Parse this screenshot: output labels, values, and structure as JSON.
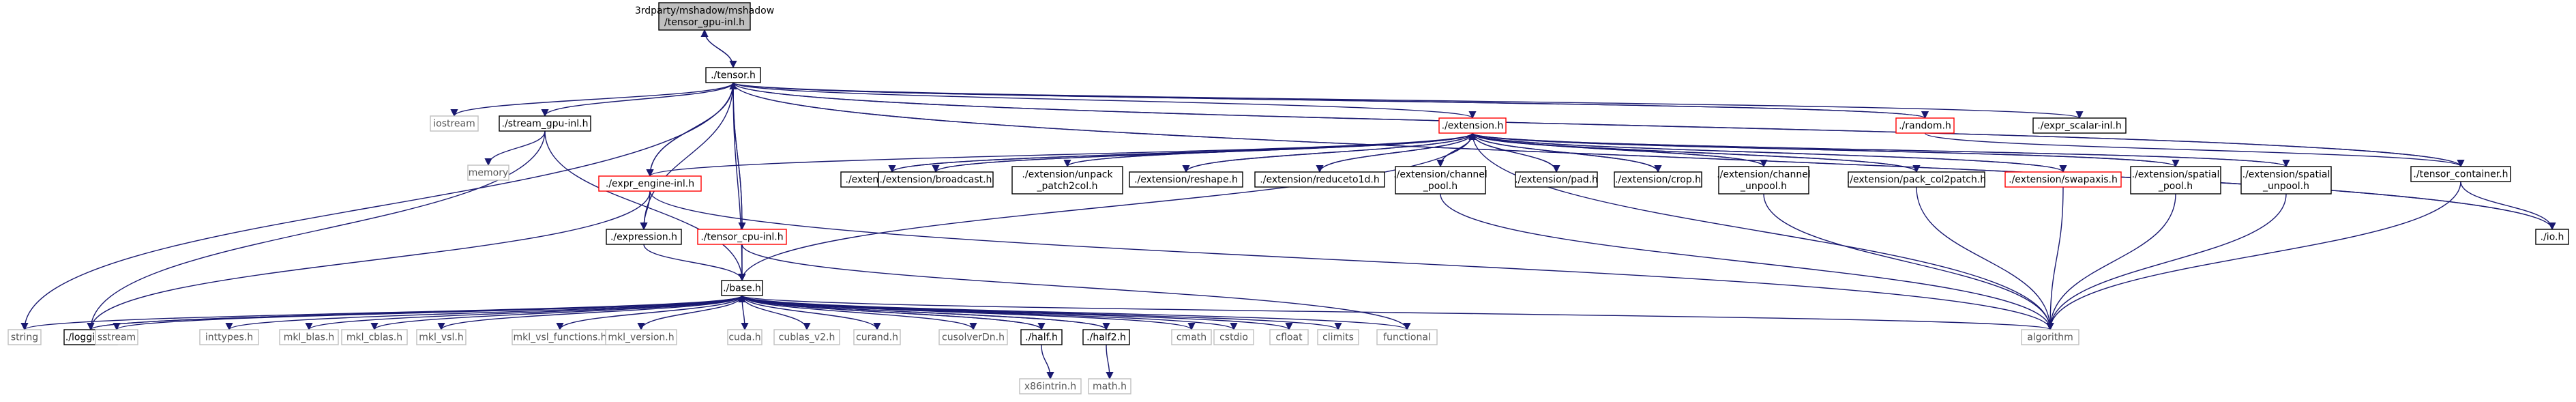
{
  "graph": {
    "nodes": [
      {
        "id": "root",
        "lines": [
          "3rdparty/mshadow/mshadow",
          "/tensor_gpu-inl.h"
        ],
        "kind": "root"
      },
      {
        "id": "tensor",
        "lines": [
          "./tensor.h"
        ],
        "kind": "normal"
      },
      {
        "id": "iostream",
        "lines": [
          "iostream"
        ],
        "kind": "external"
      },
      {
        "id": "stream_gpu",
        "lines": [
          "./stream_gpu-inl.h"
        ],
        "kind": "normal"
      },
      {
        "id": "memory",
        "lines": [
          "memory"
        ],
        "kind": "external"
      },
      {
        "id": "expr_engine",
        "lines": [
          "./expr_engine-inl.h"
        ],
        "kind": "truncated"
      },
      {
        "id": "expression",
        "lines": [
          "./expression.h"
        ],
        "kind": "normal"
      },
      {
        "id": "tensor_cpu",
        "lines": [
          "./tensor_cpu-inl.h"
        ],
        "kind": "truncated"
      },
      {
        "id": "extension",
        "lines": [
          "./extension.h"
        ],
        "kind": "truncated"
      },
      {
        "id": "random",
        "lines": [
          "./random.h"
        ],
        "kind": "truncated"
      },
      {
        "id": "expr_scalar",
        "lines": [
          "./expr_scalar-inl.h"
        ],
        "kind": "normal"
      },
      {
        "id": "tensor_container",
        "lines": [
          "./tensor_container.h"
        ],
        "kind": "normal"
      },
      {
        "id": "io",
        "lines": [
          "./io.h"
        ],
        "kind": "normal"
      },
      {
        "id": "ext_mirror",
        "lines": [
          "./extension/mirror.h"
        ],
        "kind": "normal"
      },
      {
        "id": "ext_broadcast",
        "lines": [
          "./extension/broadcast.h"
        ],
        "kind": "normal"
      },
      {
        "id": "ext_unpack",
        "lines": [
          "./extension/unpack",
          "_patch2col.h"
        ],
        "kind": "normal"
      },
      {
        "id": "ext_reshape",
        "lines": [
          "./extension/reshape.h"
        ],
        "kind": "normal"
      },
      {
        "id": "ext_reduceto1d",
        "lines": [
          "./extension/reduceto1d.h"
        ],
        "kind": "normal"
      },
      {
        "id": "ext_channel_pool",
        "lines": [
          "./extension/channel",
          "_pool.h"
        ],
        "kind": "normal"
      },
      {
        "id": "ext_pad",
        "lines": [
          "./extension/pad.h"
        ],
        "kind": "normal"
      },
      {
        "id": "ext_crop",
        "lines": [
          "./extension/crop.h"
        ],
        "kind": "normal"
      },
      {
        "id": "ext_channel_unpool",
        "lines": [
          "./extension/channel",
          "_unpool.h"
        ],
        "kind": "normal"
      },
      {
        "id": "ext_pack",
        "lines": [
          "./extension/pack_col2patch.h"
        ],
        "kind": "normal"
      },
      {
        "id": "ext_swapaxis",
        "lines": [
          "./extension/swapaxis.h"
        ],
        "kind": "truncated"
      },
      {
        "id": "ext_spatial_pool",
        "lines": [
          "./extension/spatial",
          "_pool.h"
        ],
        "kind": "normal"
      },
      {
        "id": "ext_spatial_unpool",
        "lines": [
          "./extension/spatial",
          "_unpool.h"
        ],
        "kind": "normal"
      },
      {
        "id": "base",
        "lines": [
          "./base.h"
        ],
        "kind": "normal"
      },
      {
        "id": "string",
        "lines": [
          "string"
        ],
        "kind": "external"
      },
      {
        "id": "logging",
        "lines": [
          "./logging.h"
        ],
        "kind": "normal"
      },
      {
        "id": "sstream",
        "lines": [
          "sstream"
        ],
        "kind": "external"
      },
      {
        "id": "inttypes",
        "lines": [
          "inttypes.h"
        ],
        "kind": "external"
      },
      {
        "id": "mkl_blas",
        "lines": [
          "mkl_blas.h"
        ],
        "kind": "external"
      },
      {
        "id": "mkl_cblas",
        "lines": [
          "mkl_cblas.h"
        ],
        "kind": "external"
      },
      {
        "id": "mkl_vsl",
        "lines": [
          "mkl_vsl.h"
        ],
        "kind": "external"
      },
      {
        "id": "mkl_vsl_functions",
        "lines": [
          "mkl_vsl_functions.h"
        ],
        "kind": "external"
      },
      {
        "id": "mkl_version",
        "lines": [
          "mkl_version.h"
        ],
        "kind": "external"
      },
      {
        "id": "cuda",
        "lines": [
          "cuda.h"
        ],
        "kind": "external"
      },
      {
        "id": "cublas",
        "lines": [
          "cublas_v2.h"
        ],
        "kind": "external"
      },
      {
        "id": "curand",
        "lines": [
          "curand.h"
        ],
        "kind": "external"
      },
      {
        "id": "cusolver",
        "lines": [
          "cusolverDn.h"
        ],
        "kind": "external"
      },
      {
        "id": "half",
        "lines": [
          "./half.h"
        ],
        "kind": "normal"
      },
      {
        "id": "half2",
        "lines": [
          "./half2.h"
        ],
        "kind": "normal"
      },
      {
        "id": "cmath",
        "lines": [
          "cmath"
        ],
        "kind": "external"
      },
      {
        "id": "cstdio",
        "lines": [
          "cstdio"
        ],
        "kind": "external"
      },
      {
        "id": "cfloat",
        "lines": [
          "cfloat"
        ],
        "kind": "external"
      },
      {
        "id": "climits",
        "lines": [
          "climits"
        ],
        "kind": "external"
      },
      {
        "id": "functional",
        "lines": [
          "functional"
        ],
        "kind": "external"
      },
      {
        "id": "algorithm",
        "lines": [
          "algorithm"
        ],
        "kind": "external"
      },
      {
        "id": "x86intrin",
        "lines": [
          "x86intrin.h"
        ],
        "kind": "external"
      },
      {
        "id": "math",
        "lines": [
          "math.h"
        ],
        "kind": "external"
      }
    ],
    "edges": [
      [
        "root",
        "tensor"
      ],
      [
        "tensor",
        "root"
      ],
      [
        "tensor",
        "iostream"
      ],
      [
        "tensor",
        "stream_gpu"
      ],
      [
        "tensor",
        "string"
      ],
      [
        "tensor",
        "base"
      ],
      [
        "tensor",
        "expression"
      ],
      [
        "tensor",
        "expr_engine"
      ],
      [
        "tensor",
        "tensor_cpu"
      ],
      [
        "tensor",
        "extension"
      ],
      [
        "tensor",
        "random"
      ],
      [
        "tensor",
        "expr_scalar"
      ],
      [
        "tensor",
        "tensor_container"
      ],
      [
        "tensor",
        "io"
      ],
      [
        "stream_gpu",
        "memory"
      ],
      [
        "stream_gpu",
        "base"
      ],
      [
        "stream_gpu",
        "logging"
      ],
      [
        "expr_engine",
        "expression"
      ],
      [
        "expr_engine",
        "algorithm"
      ],
      [
        "expr_engine",
        "logging"
      ],
      [
        "expr_engine",
        "tensor"
      ],
      [
        "tensor_cpu",
        "base"
      ],
      [
        "tensor_cpu",
        "functional"
      ],
      [
        "tensor_cpu",
        "tensor"
      ],
      [
        "expression",
        "base"
      ],
      [
        "extension",
        "expr_engine"
      ],
      [
        "extension",
        "ext_mirror"
      ],
      [
        "extension",
        "ext_broadcast"
      ],
      [
        "extension",
        "ext_unpack"
      ],
      [
        "extension",
        "ext_reshape"
      ],
      [
        "extension",
        "ext_reduceto1d"
      ],
      [
        "extension",
        "ext_channel_pool"
      ],
      [
        "extension",
        "ext_pad"
      ],
      [
        "extension",
        "ext_crop"
      ],
      [
        "extension",
        "ext_channel_unpool"
      ],
      [
        "extension",
        "ext_pack"
      ],
      [
        "extension",
        "ext_swapaxis"
      ],
      [
        "extension",
        "ext_spatial_pool"
      ],
      [
        "extension",
        "ext_spatial_unpool"
      ],
      [
        "ext_mirror",
        "extension"
      ],
      [
        "ext_broadcast",
        "extension"
      ],
      [
        "ext_unpack",
        "extension"
      ],
      [
        "ext_reshape",
        "extension"
      ],
      [
        "ext_reduceto1d",
        "extension"
      ],
      [
        "ext_channel_pool",
        "extension"
      ],
      [
        "ext_pad",
        "extension"
      ],
      [
        "ext_crop",
        "extension"
      ],
      [
        "ext_channel_unpool",
        "extension"
      ],
      [
        "ext_pack",
        "extension"
      ],
      [
        "ext_swapaxis",
        "extension"
      ],
      [
        "ext_spatial_pool",
        "extension"
      ],
      [
        "ext_spatial_unpool",
        "extension"
      ],
      [
        "extension",
        "algorithm"
      ],
      [
        "extension",
        "base"
      ],
      [
        "ext_channel_pool",
        "algorithm"
      ],
      [
        "ext_channel_unpool",
        "algorithm"
      ],
      [
        "ext_pack",
        "algorithm"
      ],
      [
        "ext_swapaxis",
        "algorithm"
      ],
      [
        "ext_spatial_pool",
        "algorithm"
      ],
      [
        "ext_spatial_unpool",
        "algorithm"
      ],
      [
        "random",
        "tensor_container"
      ],
      [
        "random",
        "tensor"
      ],
      [
        "tensor_container",
        "tensor"
      ],
      [
        "tensor_container",
        "io"
      ],
      [
        "io",
        "tensor"
      ],
      [
        "tensor_container",
        "algorithm"
      ],
      [
        "base",
        "string"
      ],
      [
        "base",
        "logging"
      ],
      [
        "base",
        "sstream"
      ],
      [
        "base",
        "inttypes"
      ],
      [
        "base",
        "mkl_blas"
      ],
      [
        "base",
        "mkl_cblas"
      ],
      [
        "base",
        "mkl_vsl"
      ],
      [
        "base",
        "mkl_vsl_functions"
      ],
      [
        "base",
        "mkl_version"
      ],
      [
        "base",
        "cuda"
      ],
      [
        "base",
        "cublas"
      ],
      [
        "base",
        "curand"
      ],
      [
        "base",
        "cusolver"
      ],
      [
        "base",
        "half"
      ],
      [
        "base",
        "half2"
      ],
      [
        "base",
        "cmath"
      ],
      [
        "base",
        "cstdio"
      ],
      [
        "base",
        "cfloat"
      ],
      [
        "base",
        "climits"
      ],
      [
        "base",
        "functional"
      ],
      [
        "base",
        "algorithm"
      ],
      [
        "half",
        "base"
      ],
      [
        "half2",
        "base"
      ],
      [
        "logging",
        "base"
      ],
      [
        "half",
        "x86intrin"
      ],
      [
        "half2",
        "math"
      ]
    ]
  },
  "colors": {
    "edge": "#191970",
    "root_fill": "#bfbfbf",
    "normal_border": "#000000",
    "external_border": "#bfbfbf",
    "truncated_border": "#ff0000",
    "grey_text": "#555555"
  }
}
